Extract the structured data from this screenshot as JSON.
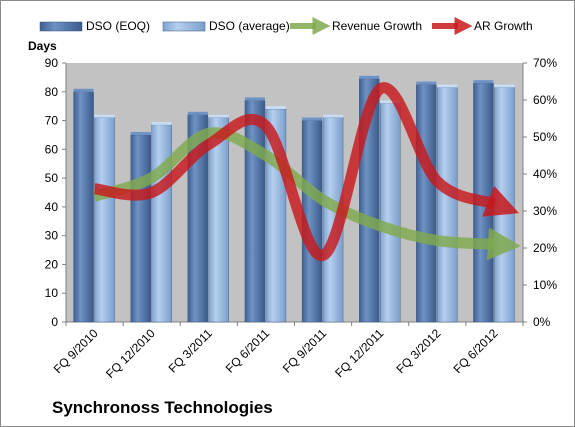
{
  "company": "Synchronoss Technologies",
  "chart_data": {
    "type": "bar",
    "categories": [
      "FQ 9/2010",
      "FQ 12/2010",
      "FQ 3/2011",
      "FQ 6/2011",
      "FQ 9/2011",
      "FQ 12/2011",
      "FQ 3/2012",
      "FQ 6/2012"
    ],
    "series": [
      {
        "name": "DSO (EOQ)",
        "type": "bar",
        "axis": "left",
        "values": [
          80,
          65,
          72,
          77,
          70,
          84.5,
          82.5,
          83
        ]
      },
      {
        "name": "DSO (average)",
        "type": "bar",
        "axis": "left",
        "values": [
          71,
          68.5,
          71,
          74,
          71,
          76,
          81.5,
          81.5
        ]
      },
      {
        "name": "Revenue Growth",
        "type": "line",
        "axis": "right",
        "values": [
          0.34,
          0.39,
          0.51,
          0.45,
          0.33,
          0.26,
          0.22,
          0.21
        ]
      },
      {
        "name": "AR Growth",
        "type": "line",
        "axis": "right",
        "values": [
          0.36,
          0.35,
          0.48,
          0.53,
          0.18,
          0.63,
          0.38,
          0.32
        ]
      }
    ],
    "y_left": {
      "label": "Days",
      "ylim": [
        0,
        90
      ],
      "ticks": [
        0,
        10,
        20,
        30,
        40,
        50,
        60,
        70,
        80,
        90
      ]
    },
    "y_right": {
      "ylim": [
        0,
        0.7
      ],
      "ticks": [
        "0%",
        "10%",
        "20%",
        "30%",
        "40%",
        "50%",
        "60%",
        "70%"
      ]
    },
    "legend": "top",
    "grid": false,
    "colors": {
      "plot_bg": "#c2c2c2",
      "bar_eoq": "#4a6fa5",
      "bar_avg": "#8eb2dc",
      "revenue_growth": "#80a94d",
      "ar_growth": "#c8191b"
    }
  }
}
